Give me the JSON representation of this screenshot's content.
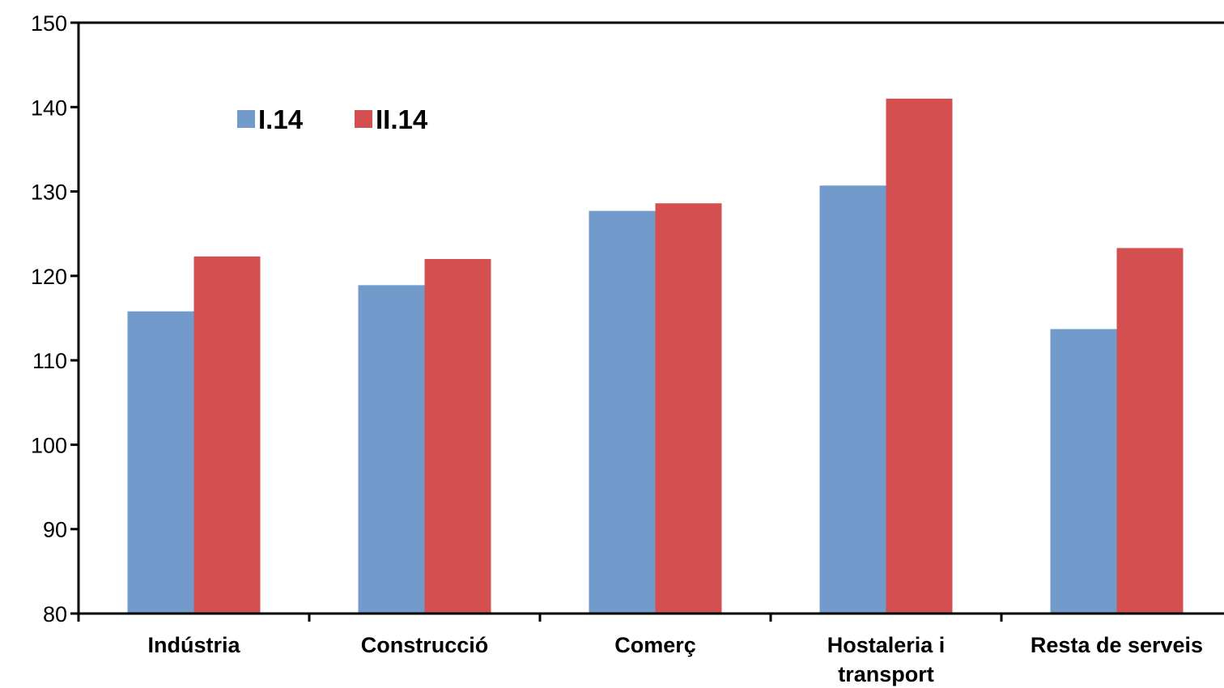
{
  "chart_data": {
    "type": "bar",
    "title": "",
    "xlabel": "",
    "ylabel": "",
    "ylim": [
      80,
      150
    ],
    "yticks": [
      80,
      90,
      100,
      110,
      120,
      130,
      140,
      150
    ],
    "grid": false,
    "legend_position": "top-left",
    "categories": [
      [
        "Indústria"
      ],
      [
        "Construcció"
      ],
      [
        "Comerç"
      ],
      [
        "Hostaleria i",
        "transport"
      ],
      [
        "Resta de serveis"
      ]
    ],
    "series": [
      {
        "name": "I.14",
        "color": "#729aca",
        "values": [
          115.8,
          118.9,
          127.7,
          130.7,
          113.7
        ]
      },
      {
        "name": "II.14",
        "color": "#d45050",
        "values": [
          122.3,
          122.0,
          128.6,
          141.0,
          123.3
        ]
      }
    ]
  }
}
